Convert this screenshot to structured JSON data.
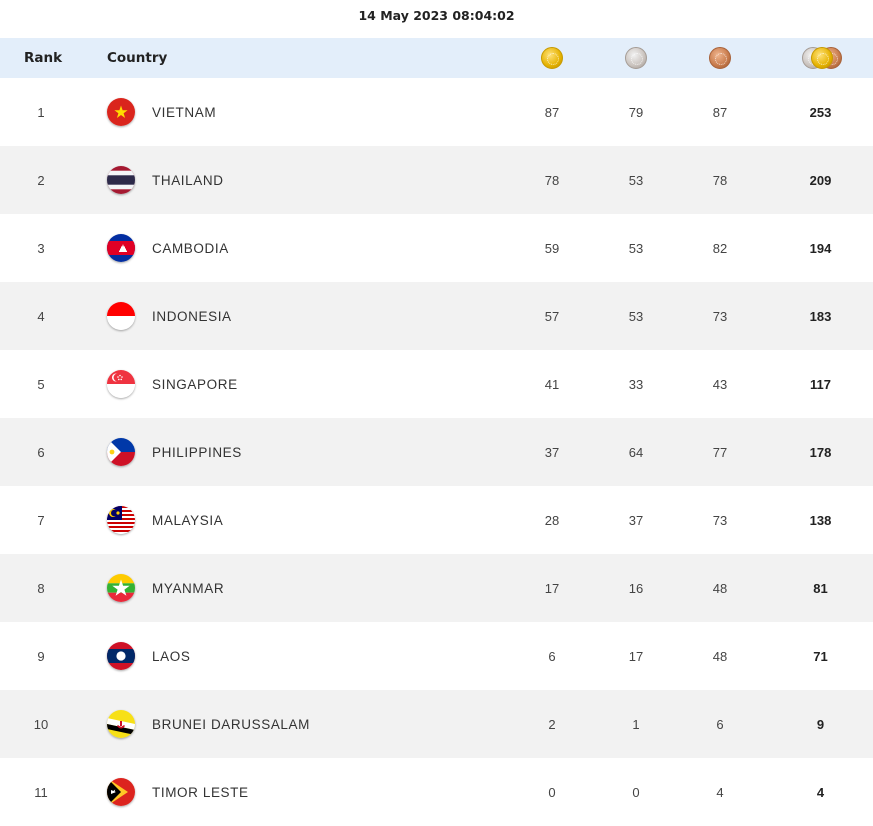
{
  "timestamp": "14 May 2023  08:04:02",
  "header": {
    "rank": "Rank",
    "country": "Country",
    "gold_icon": "gold-medal-icon",
    "silver_icon": "silver-medal-icon",
    "bronze_icon": "bronze-medal-icon",
    "total_icon": "total-medals-icon"
  },
  "rows": [
    {
      "rank": "1",
      "country": "VIETNAM",
      "flag": "vietnam-flag-icon",
      "gold": "87",
      "silver": "79",
      "bronze": "87",
      "total": "253"
    },
    {
      "rank": "2",
      "country": "THAILAND",
      "flag": "thailand-flag-icon",
      "gold": "78",
      "silver": "53",
      "bronze": "78",
      "total": "209"
    },
    {
      "rank": "3",
      "country": "CAMBODIA",
      "flag": "cambodia-flag-icon",
      "gold": "59",
      "silver": "53",
      "bronze": "82",
      "total": "194"
    },
    {
      "rank": "4",
      "country": "INDONESIA",
      "flag": "indonesia-flag-icon",
      "gold": "57",
      "silver": "53",
      "bronze": "73",
      "total": "183"
    },
    {
      "rank": "5",
      "country": "SINGAPORE",
      "flag": "singapore-flag-icon",
      "gold": "41",
      "silver": "33",
      "bronze": "43",
      "total": "117"
    },
    {
      "rank": "6",
      "country": "PHILIPPINES",
      "flag": "philippines-flag-icon",
      "gold": "37",
      "silver": "64",
      "bronze": "77",
      "total": "178"
    },
    {
      "rank": "7",
      "country": "MALAYSIA",
      "flag": "malaysia-flag-icon",
      "gold": "28",
      "silver": "37",
      "bronze": "73",
      "total": "138"
    },
    {
      "rank": "8",
      "country": "MYANMAR",
      "flag": "myanmar-flag-icon",
      "gold": "17",
      "silver": "16",
      "bronze": "48",
      "total": "81"
    },
    {
      "rank": "9",
      "country": "LAOS",
      "flag": "laos-flag-icon",
      "gold": "6",
      "silver": "17",
      "bronze": "48",
      "total": "71"
    },
    {
      "rank": "10",
      "country": "BRUNEI DARUSSALAM",
      "flag": "brunei-flag-icon",
      "gold": "2",
      "silver": "1",
      "bronze": "6",
      "total": "9"
    },
    {
      "rank": "11",
      "country": "TIMOR LESTE",
      "flag": "timor-leste-flag-icon",
      "gold": "0",
      "silver": "0",
      "bronze": "4",
      "total": "4"
    }
  ],
  "colors": {
    "header_bg": "#e3eefa",
    "row_alt_bg": "#f2f2f2",
    "gold": "#e5b200",
    "silver": "#c9c2bd",
    "bronze": "#c77a4b"
  }
}
